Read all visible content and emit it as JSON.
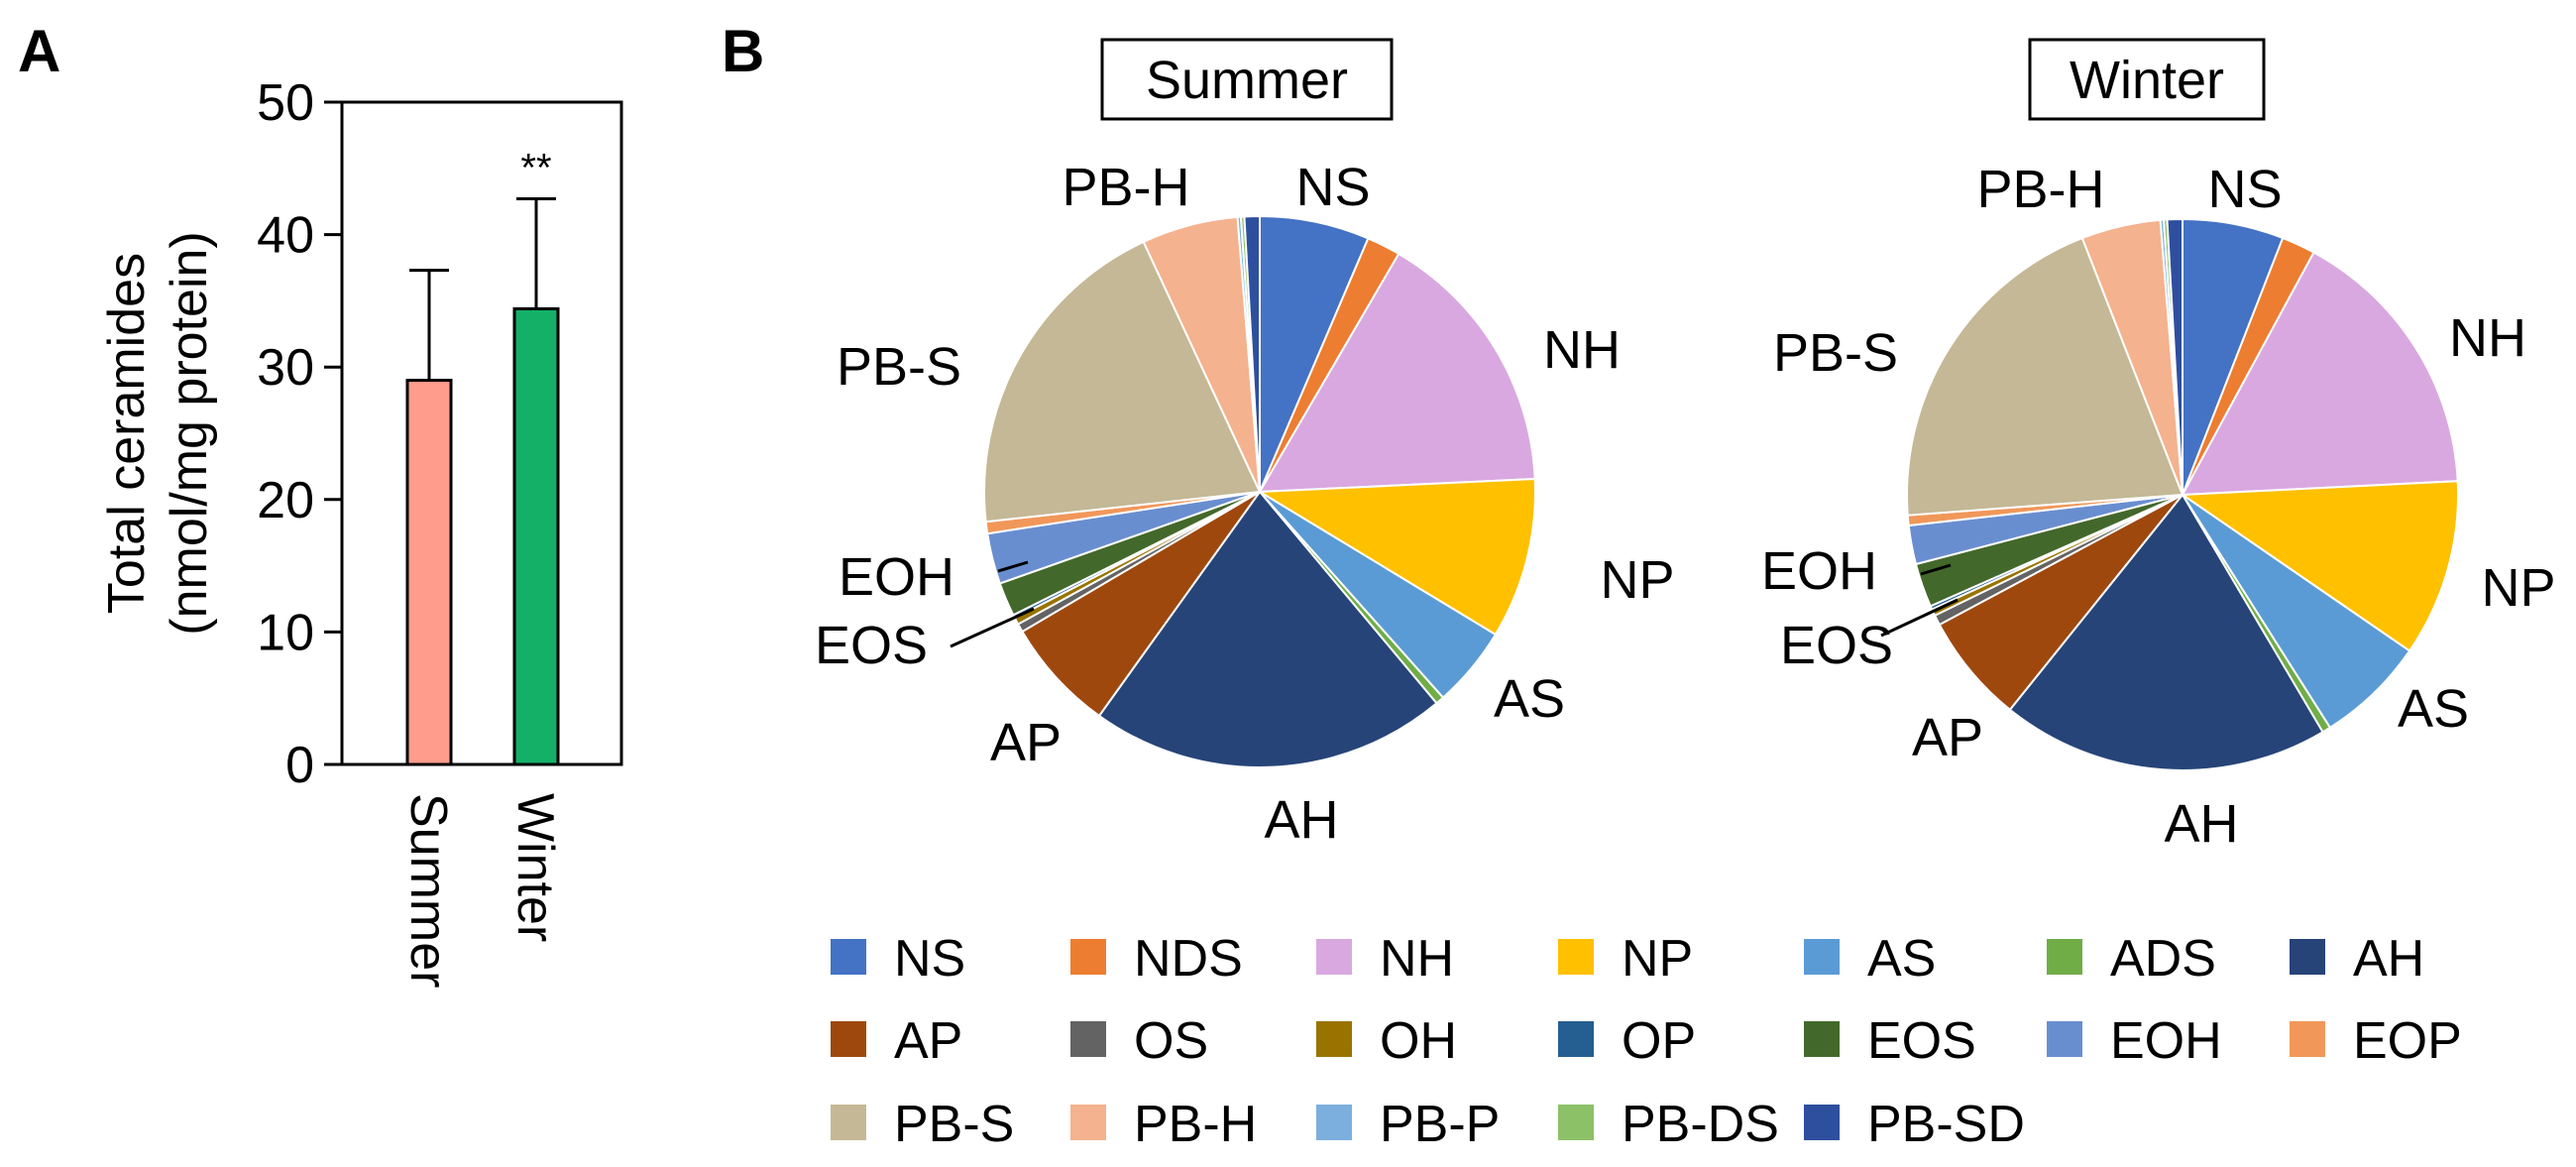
{
  "panels": {
    "a_label": "A",
    "b_label": "B"
  },
  "chart_data": [
    {
      "type": "bar",
      "panel": "A",
      "categories": [
        "Summer",
        "Winter"
      ],
      "values": [
        29.0,
        34.4
      ],
      "errors": [
        8.3,
        8.3
      ],
      "colors": [
        "#FF9C8C",
        "#14B068"
      ],
      "ylabel_line1": "Total ceramides",
      "ylabel_line2": "(nmol/mg protein)",
      "ylim": [
        0,
        50
      ],
      "yticks": [
        "0",
        "10",
        "20",
        "30",
        "40",
        "50"
      ],
      "significance": [
        "",
        "**"
      ]
    },
    {
      "type": "pie",
      "panel": "B",
      "charts": [
        {
          "title": "Summer",
          "slices": [
            {
              "name": "NS",
              "value": 6.5
            },
            {
              "name": "NDS",
              "value": 2.0
            },
            {
              "name": "NH",
              "value": 16.0
            },
            {
              "name": "NP",
              "value": 9.5
            },
            {
              "name": "AS",
              "value": 4.8
            },
            {
              "name": "ADS",
              "value": 0.5
            },
            {
              "name": "AH",
              "value": 21.2
            },
            {
              "name": "AP",
              "value": 6.7
            },
            {
              "name": "OS",
              "value": 0.5
            },
            {
              "name": "OH",
              "value": 0.4
            },
            {
              "name": "OP",
              "value": 0.2
            },
            {
              "name": "EOS",
              "value": 2.0
            },
            {
              "name": "EOH",
              "value": 3.0
            },
            {
              "name": "EOP",
              "value": 0.7
            },
            {
              "name": "PB-S",
              "value": 20.0
            },
            {
              "name": "PB-H",
              "value": 5.7
            },
            {
              "name": "PB-P",
              "value": 0.2
            },
            {
              "name": "PB-DS",
              "value": 0.2
            },
            {
              "name": "PB-SD",
              "value": 0.9
            }
          ],
          "labels": [
            "NS",
            "NH",
            "NP",
            "AS",
            "AH",
            "AP",
            "EOS",
            "EOH",
            "PB-S",
            "PB-H"
          ]
        },
        {
          "title": "Winter",
          "slices": [
            {
              "name": "NS",
              "value": 6.0
            },
            {
              "name": "NDS",
              "value": 2.0
            },
            {
              "name": "NH",
              "value": 16.5
            },
            {
              "name": "NP",
              "value": 10.5
            },
            {
              "name": "AS",
              "value": 6.5
            },
            {
              "name": "ADS",
              "value": 0.5
            },
            {
              "name": "AH",
              "value": 19.5
            },
            {
              "name": "AP",
              "value": 6.5
            },
            {
              "name": "OS",
              "value": 0.6
            },
            {
              "name": "OH",
              "value": 0.4
            },
            {
              "name": "OP",
              "value": 0.2
            },
            {
              "name": "EOS",
              "value": 2.6
            },
            {
              "name": "EOH",
              "value": 2.3
            },
            {
              "name": "EOP",
              "value": 0.6
            },
            {
              "name": "PB-S",
              "value": 20.5
            },
            {
              "name": "PB-H",
              "value": 4.7
            },
            {
              "name": "PB-P",
              "value": 0.2
            },
            {
              "name": "PB-DS",
              "value": 0.2
            },
            {
              "name": "PB-SD",
              "value": 0.9
            }
          ],
          "labels": [
            "NS",
            "NH",
            "NP",
            "AS",
            "AH",
            "AP",
            "EOS",
            "EOH",
            "PB-S",
            "PB-H"
          ]
        }
      ],
      "legend": [
        {
          "name": "NS",
          "color": "#4472C4"
        },
        {
          "name": "NDS",
          "color": "#ED7D31"
        },
        {
          "name": "NH",
          "color": "#D9A8E0"
        },
        {
          "name": "NP",
          "color": "#FFC000"
        },
        {
          "name": "AS",
          "color": "#5B9BD5"
        },
        {
          "name": "ADS",
          "color": "#70AD47"
        },
        {
          "name": "AH",
          "color": "#264478"
        },
        {
          "name": "AP",
          "color": "#9E480E"
        },
        {
          "name": "OS",
          "color": "#636363"
        },
        {
          "name": "OH",
          "color": "#997300"
        },
        {
          "name": "OP",
          "color": "#255E91"
        },
        {
          "name": "EOS",
          "color": "#43682B"
        },
        {
          "name": "EOH",
          "color": "#698ED0"
        },
        {
          "name": "EOP",
          "color": "#F1975A"
        },
        {
          "name": "PB-S",
          "color": "#C4B896"
        },
        {
          "name": "PB-H",
          "color": "#F4B28E"
        },
        {
          "name": "PB-P",
          "color": "#7CAFDD"
        },
        {
          "name": "PB-DS",
          "color": "#8CC168"
        },
        {
          "name": "PB-SD",
          "color": "#2E4F9E"
        }
      ]
    }
  ]
}
